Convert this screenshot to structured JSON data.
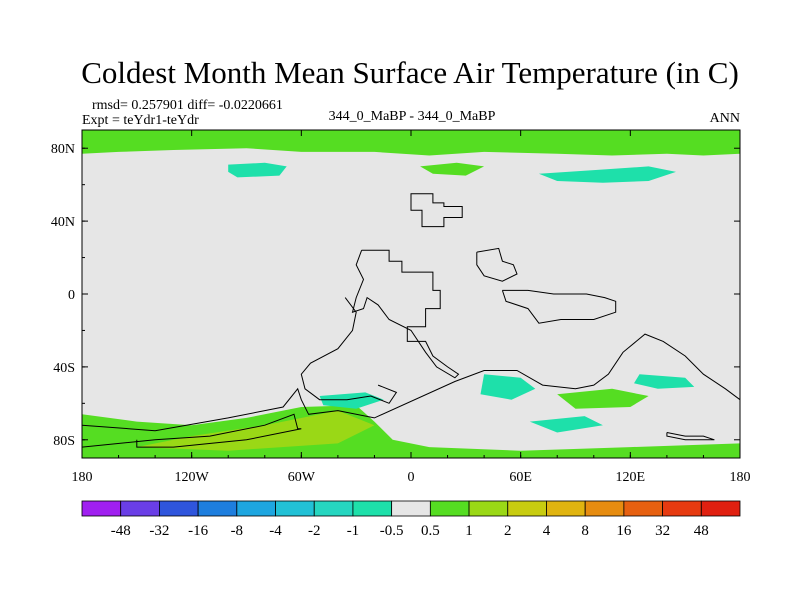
{
  "chart_data": {
    "type": "heatmap",
    "title": "Coldest Month Mean Surface Air Temperature (in C)",
    "stats_line": "rmsd= 0.257901 diff= -0.0220661",
    "experiment": "Expt = teYdr1-teYdr",
    "case_label": "344_0_MaBP - 344_0_MaBP",
    "season": "ANN",
    "xlim": [
      -180,
      180
    ],
    "ylim": [
      -90,
      90
    ],
    "x_ticks": [
      {
        "value": -180,
        "label": "180"
      },
      {
        "value": -120,
        "label": "120W"
      },
      {
        "value": -60,
        "label": "60W"
      },
      {
        "value": 0,
        "label": "0"
      },
      {
        "value": 60,
        "label": "60E"
      },
      {
        "value": 120,
        "label": "120E"
      },
      {
        "value": 180,
        "label": "180"
      }
    ],
    "y_ticks": [
      {
        "value": 80,
        "label": "80N"
      },
      {
        "value": 40,
        "label": "40N"
      },
      {
        "value": 0,
        "label": "0"
      },
      {
        "value": -40,
        "label": "40S"
      },
      {
        "value": -80,
        "label": "80S"
      }
    ],
    "background_level": "-0.5 to 0.5",
    "colorbar": {
      "labels": [
        "-48",
        "-32",
        "-16",
        "-8",
        "-4",
        "-2",
        "-1",
        "-0.5",
        "0.5",
        "1",
        "2",
        "4",
        "8",
        "16",
        "32",
        "48"
      ],
      "colors": [
        "#a020f0",
        "#6a3ee6",
        "#2f55dc",
        "#1e7ede",
        "#1ea6e0",
        "#22c1d6",
        "#26d6c0",
        "#1ee0aa",
        "#e6e6e6",
        "#55dd22",
        "#9ad816",
        "#c8cc10",
        "#e0b410",
        "#e68c10",
        "#e66010",
        "#e63a10",
        "#e02010"
      ]
    },
    "regions": [
      {
        "name": "arctic-band",
        "level": "1",
        "color": "#55dd22",
        "polygon": [
          [
            -180,
            90
          ],
          [
            180,
            90
          ],
          [
            180,
            77
          ],
          [
            160,
            76
          ],
          [
            140,
            77
          ],
          [
            110,
            76
          ],
          [
            80,
            77
          ],
          [
            40,
            78
          ],
          [
            10,
            76
          ],
          [
            -20,
            78
          ],
          [
            -60,
            78
          ],
          [
            -90,
            80
          ],
          [
            -130,
            79
          ],
          [
            -160,
            78
          ],
          [
            -180,
            77
          ]
        ]
      },
      {
        "name": "arctic-north-america",
        "level": "-0.5",
        "color": "#1ee0aa",
        "polygon": [
          [
            -100,
            71
          ],
          [
            -80,
            72
          ],
          [
            -68,
            70
          ],
          [
            -72,
            65
          ],
          [
            -95,
            64
          ],
          [
            -100,
            67
          ]
        ]
      },
      {
        "name": "arctic-siberia",
        "level": "-0.5",
        "color": "#1ee0aa",
        "polygon": [
          [
            70,
            66
          ],
          [
            100,
            68
          ],
          [
            130,
            70
          ],
          [
            145,
            67
          ],
          [
            130,
            62
          ],
          [
            105,
            61
          ],
          [
            80,
            62
          ]
        ]
      },
      {
        "name": "arctic-scandinavia",
        "level": "1",
        "color": "#55dd22",
        "polygon": [
          [
            5,
            70
          ],
          [
            25,
            72
          ],
          [
            40,
            70
          ],
          [
            30,
            65
          ],
          [
            12,
            66
          ]
        ]
      },
      {
        "name": "southern-ocean-band",
        "level": "1",
        "color": "#55dd22",
        "polygon": [
          [
            -180,
            -66
          ],
          [
            -150,
            -70
          ],
          [
            -120,
            -72
          ],
          [
            -90,
            -68
          ],
          [
            -60,
            -62
          ],
          [
            -30,
            -61
          ],
          [
            -20,
            -70
          ],
          [
            -10,
            -80
          ],
          [
            10,
            -84
          ],
          [
            60,
            -86
          ],
          [
            120,
            -84
          ],
          [
            180,
            -82
          ],
          [
            180,
            -90
          ],
          [
            -180,
            -90
          ]
        ]
      },
      {
        "name": "antarctic-peninsula-warm",
        "level": "2",
        "color": "#9ad816",
        "polygon": [
          [
            -150,
            -84
          ],
          [
            -120,
            -78
          ],
          [
            -80,
            -72
          ],
          [
            -40,
            -64
          ],
          [
            -20,
            -72
          ],
          [
            -40,
            -82
          ],
          [
            -100,
            -86
          ]
        ]
      },
      {
        "name": "antarctic-cool-patch",
        "level": "-0.5",
        "color": "#1ee0aa",
        "polygon": [
          [
            40,
            -44
          ],
          [
            60,
            -46
          ],
          [
            68,
            -52
          ],
          [
            55,
            -58
          ],
          [
            38,
            -55
          ]
        ]
      },
      {
        "name": "indian-ocean-patch",
        "level": "1",
        "color": "#55dd22",
        "polygon": [
          [
            80,
            -55
          ],
          [
            110,
            -52
          ],
          [
            130,
            -56
          ],
          [
            120,
            -62
          ],
          [
            90,
            -63
          ]
        ]
      },
      {
        "name": "pacific-cool-patch",
        "level": "-0.5",
        "color": "#1ee0aa",
        "polygon": [
          [
            125,
            -44
          ],
          [
            150,
            -46
          ],
          [
            155,
            -51
          ],
          [
            135,
            -52
          ],
          [
            122,
            -49
          ]
        ]
      },
      {
        "name": "atlantic-cool-patch",
        "level": "-0.5",
        "color": "#1ee0aa",
        "polygon": [
          [
            -50,
            -56
          ],
          [
            -25,
            -54
          ],
          [
            -15,
            -58
          ],
          [
            -30,
            -63
          ],
          [
            -48,
            -61
          ]
        ]
      },
      {
        "name": "east-antarctic-cool-patch",
        "level": "-0.5",
        "color": "#1ee0aa",
        "polygon": [
          [
            65,
            -70
          ],
          [
            95,
            -67
          ],
          [
            105,
            -72
          ],
          [
            80,
            -76
          ]
        ]
      }
    ],
    "continent_outlines": [
      {
        "name": "europe-coast",
        "points": [
          [
            2,
            55
          ],
          [
            12,
            55
          ],
          [
            12,
            50
          ],
          [
            18,
            50
          ],
          [
            18,
            48
          ],
          [
            28,
            48
          ],
          [
            28,
            42
          ],
          [
            18,
            42
          ],
          [
            18,
            37
          ],
          [
            6,
            37
          ],
          [
            6,
            46
          ],
          [
            0,
            46
          ],
          [
            0,
            55
          ],
          [
            2,
            55
          ]
        ]
      },
      {
        "name": "asia-inland-sea",
        "points": [
          [
            36,
            23
          ],
          [
            48,
            25
          ],
          [
            50,
            18
          ],
          [
            56,
            16
          ],
          [
            58,
            11
          ],
          [
            50,
            7
          ],
          [
            40,
            10
          ],
          [
            36,
            16
          ],
          [
            36,
            23
          ]
        ]
      },
      {
        "name": "africa-southamerica",
        "points": [
          [
            -27,
            24
          ],
          [
            -12,
            24
          ],
          [
            -12,
            18
          ],
          [
            -5,
            18
          ],
          [
            -5,
            12
          ],
          [
            12,
            12
          ],
          [
            12,
            2
          ],
          [
            16,
            2
          ],
          [
            16,
            -8
          ],
          [
            8,
            -8
          ],
          [
            8,
            -18
          ],
          [
            -2,
            -18
          ],
          [
            -2,
            -26
          ],
          [
            8,
            -26
          ],
          [
            12,
            -34
          ],
          [
            20,
            -40
          ],
          [
            26,
            -44
          ],
          [
            24,
            -46
          ],
          [
            14,
            -40
          ],
          [
            8,
            -32
          ],
          [
            0,
            -20
          ],
          [
            -12,
            -14
          ],
          [
            -18,
            -6
          ],
          [
            -24,
            -2
          ],
          [
            -26,
            -8
          ],
          [
            -32,
            -10
          ],
          [
            -30,
            -2
          ],
          [
            -26,
            8
          ],
          [
            -30,
            16
          ],
          [
            -27,
            24
          ]
        ]
      },
      {
        "name": "south-america-west",
        "points": [
          [
            -36,
            -2
          ],
          [
            -30,
            -10
          ],
          [
            -32,
            -20
          ],
          [
            -40,
            -30
          ],
          [
            -55,
            -38
          ],
          [
            -60,
            -44
          ],
          [
            -58,
            -52
          ],
          [
            -50,
            -58
          ],
          [
            -35,
            -58
          ],
          [
            -22,
            -56
          ],
          [
            -12,
            -60
          ],
          [
            -8,
            -54
          ],
          [
            -18,
            -50
          ]
        ]
      },
      {
        "name": "india-australia",
        "points": [
          [
            50,
            2
          ],
          [
            64,
            2
          ],
          [
            78,
            0
          ],
          [
            96,
            0
          ],
          [
            106,
            -2
          ],
          [
            112,
            -4
          ],
          [
            112,
            -10
          ],
          [
            100,
            -14
          ],
          [
            82,
            -14
          ],
          [
            70,
            -16
          ],
          [
            64,
            -8
          ],
          [
            52,
            -4
          ],
          [
            50,
            2
          ]
        ]
      },
      {
        "name": "antarctica-rim",
        "points": [
          [
            -180,
            -72
          ],
          [
            -140,
            -75
          ],
          [
            -100,
            -68
          ],
          [
            -70,
            -62
          ],
          [
            -62,
            -52
          ],
          [
            -60,
            -58
          ],
          [
            -56,
            -66
          ],
          [
            -40,
            -64
          ],
          [
            -20,
            -68
          ],
          [
            24,
            -48
          ],
          [
            40,
            -42
          ],
          [
            58,
            -42
          ],
          [
            72,
            -50
          ],
          [
            90,
            -52
          ],
          [
            100,
            -50
          ],
          [
            108,
            -44
          ],
          [
            116,
            -32
          ],
          [
            128,
            -22
          ],
          [
            138,
            -26
          ],
          [
            150,
            -34
          ],
          [
            160,
            -44
          ],
          [
            172,
            -52
          ],
          [
            180,
            -58
          ]
        ]
      },
      {
        "name": "antarctic-interior",
        "points": [
          [
            -180,
            -84
          ],
          [
            -140,
            -80
          ],
          [
            -110,
            -78
          ],
          [
            -80,
            -72
          ],
          [
            -64,
            -66
          ],
          [
            -62,
            -74
          ],
          [
            -60,
            -74
          ],
          [
            -90,
            -80
          ],
          [
            -130,
            -84
          ],
          [
            -150,
            -84
          ],
          [
            -150,
            -80
          ]
        ]
      },
      {
        "name": "ross-ice-shelf",
        "points": [
          [
            140,
            -76
          ],
          [
            150,
            -78
          ],
          [
            160,
            -78
          ],
          [
            166,
            -80
          ],
          [
            150,
            -80
          ],
          [
            140,
            -78
          ],
          [
            140,
            -76
          ]
        ]
      }
    ]
  }
}
